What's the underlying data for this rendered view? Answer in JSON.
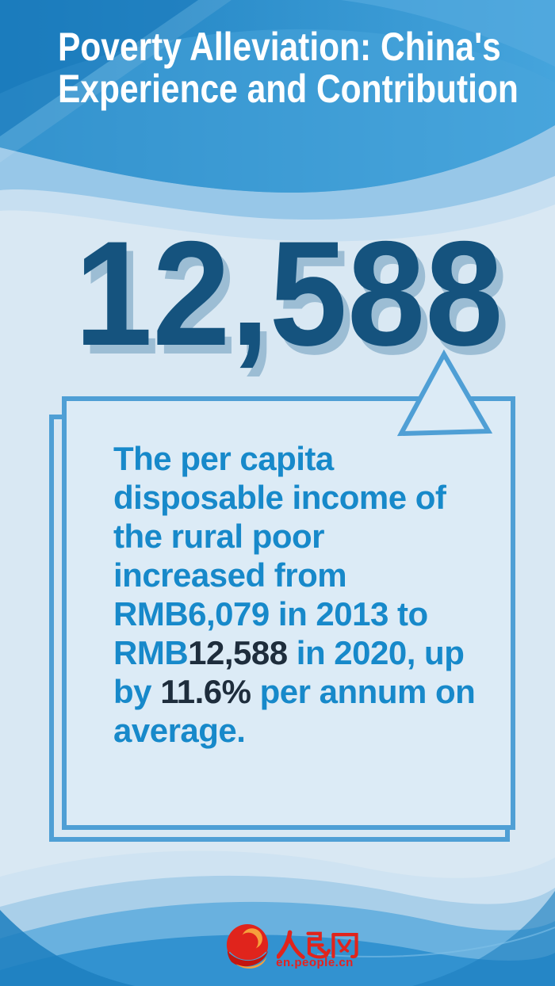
{
  "poster": {
    "title_line1": "Poverty Alleviation: China's",
    "title_line2": "Experience and Contribution",
    "headline_number": "12,588",
    "body_lines": [
      [
        {
          "t": "The per capita"
        }
      ],
      [
        {
          "t": "disposable income of"
        }
      ],
      [
        {
          "t": "the rural poor"
        }
      ],
      [
        {
          "t": "increased from"
        }
      ],
      [
        {
          "t": "RMB6,079 in 2013 to"
        }
      ],
      [
        {
          "t": "RMB"
        },
        {
          "t": "12,588",
          "em": true
        },
        {
          "t": " in 2020, up"
        }
      ],
      [
        {
          "t": "by "
        },
        {
          "t": "11.6%",
          "em": true
        },
        {
          "t": " per annum on"
        }
      ],
      [
        {
          "t": "average."
        }
      ]
    ],
    "footer": {
      "site_name": "人民网",
      "site_url": "en.people.cn",
      "logo_icon": "people-daily-swirl-icon"
    }
  },
  "colors": {
    "header_blue": "#2a90ce",
    "header_blue_dark": "#1a78ba",
    "header_blue_light": "#58ace0",
    "body_bg": "#d9e8f3",
    "number_blue": "#15537e",
    "number_shadow": "#9cbdd4",
    "card_border": "#4f9fd5",
    "card_bg": "#dcebf6",
    "text_blue": "#1789ca",
    "text_dark": "#1e2d3c",
    "wave_deep_blue": "#3292d0",
    "logo_red": "#e0241c",
    "logo_orange": "#f6a03c",
    "url_red": "#e8201d"
  }
}
